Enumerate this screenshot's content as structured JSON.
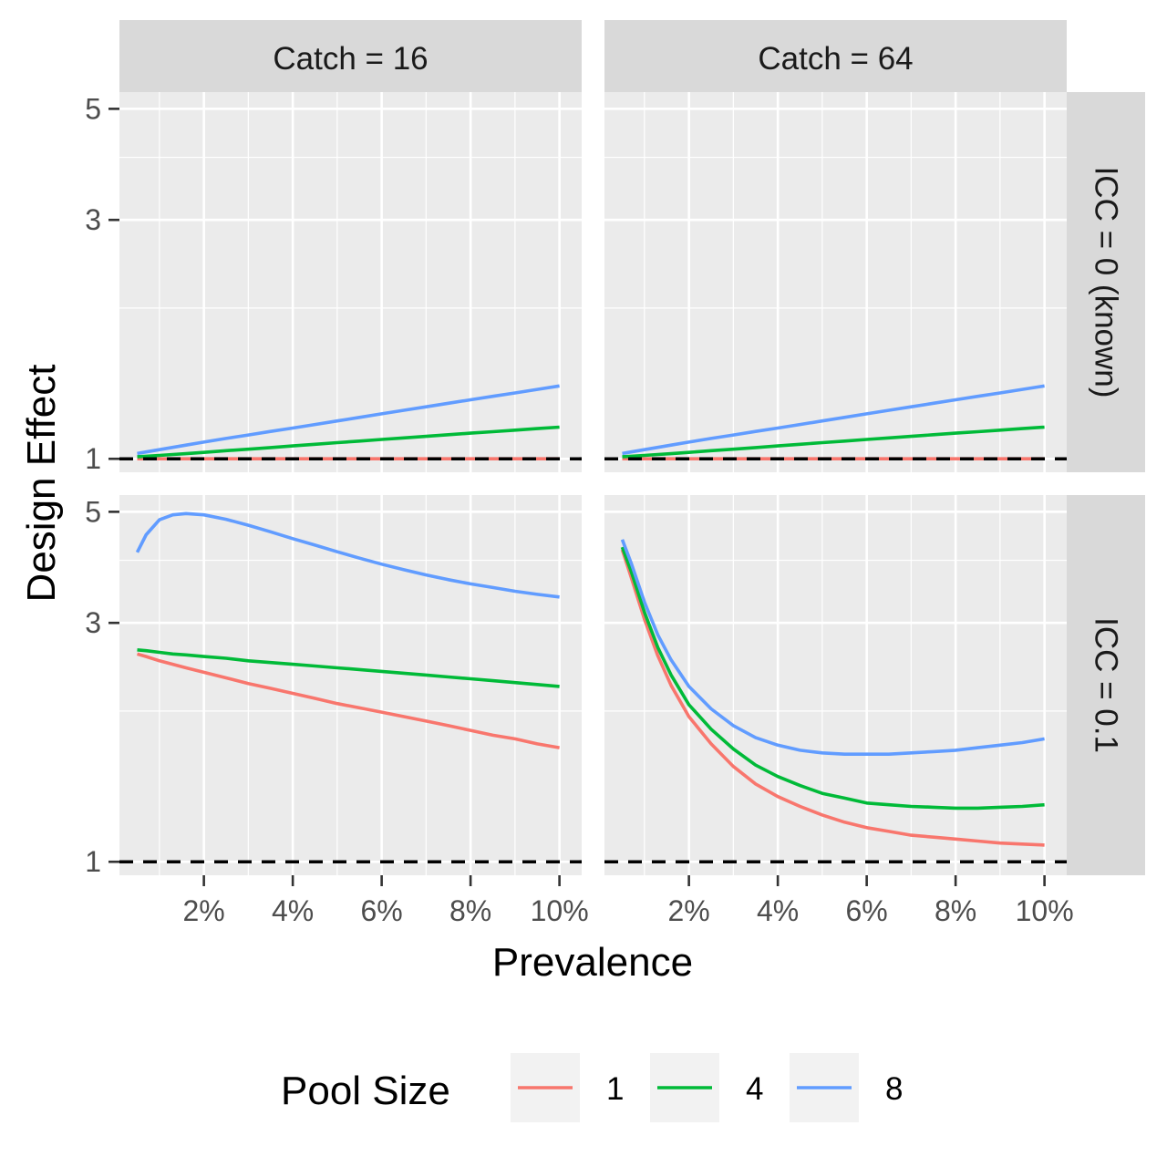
{
  "chart_data": {
    "type": "line",
    "xlabel": "Prevalence",
    "ylabel": "Design Effect",
    "x_ticks": [
      "2%",
      "4%",
      "6%",
      "8%",
      "10%"
    ],
    "y_ticks": [
      "1",
      "3",
      "5"
    ],
    "y_scale": "log",
    "xlim": [
      0.001,
      0.105
    ],
    "ylim": [
      0.94,
      5.4
    ],
    "reference_line": {
      "y": 1,
      "style": "dashed",
      "color": "#000000"
    },
    "columns": [
      "Catch = 16",
      "Catch = 64"
    ],
    "rows": [
      "ICC = 0 (known)",
      "ICC = 0.1"
    ],
    "legend": {
      "title": "Pool Size",
      "position": "bottom",
      "entries": [
        "1",
        "4",
        "8"
      ]
    },
    "colors": {
      "1": "#F8766D",
      "4": "#00BA38",
      "8": "#619CFF"
    },
    "x": [
      0.005,
      0.007,
      0.01,
      0.013,
      0.016,
      0.02,
      0.025,
      0.03,
      0.035,
      0.04,
      0.045,
      0.05,
      0.055,
      0.06,
      0.065,
      0.07,
      0.075,
      0.08,
      0.085,
      0.09,
      0.095,
      0.1
    ],
    "panels": [
      {
        "column": "Catch = 16",
        "row": "ICC = 0 (known)",
        "series": [
          {
            "name": "1",
            "values": [
              1.0,
              1.0,
              1.0,
              1.0,
              1.0,
              1.0,
              1.0,
              1.0,
              1.0,
              1.0,
              1.0,
              1.0,
              1.0,
              1.0,
              1.0,
              1.0,
              1.0,
              1.0,
              1.0,
              1.0,
              1.0,
              1.0
            ]
          },
          {
            "name": "4",
            "values": [
              1.01,
              1.012,
              1.016,
              1.02,
              1.024,
              1.03,
              1.038,
              1.045,
              1.053,
              1.061,
              1.069,
              1.077,
              1.085,
              1.093,
              1.101,
              1.109,
              1.117,
              1.125,
              1.133,
              1.141,
              1.149,
              1.157
            ]
          },
          {
            "name": "8",
            "values": [
              1.025,
              1.032,
              1.043,
              1.054,
              1.065,
              1.08,
              1.098,
              1.116,
              1.134,
              1.152,
              1.171,
              1.19,
              1.21,
              1.23,
              1.25,
              1.27,
              1.291,
              1.312,
              1.333,
              1.354,
              1.376,
              1.398
            ]
          }
        ]
      },
      {
        "column": "Catch = 64",
        "row": "ICC = 0 (known)",
        "series": [
          {
            "name": "1",
            "values": [
              1.0,
              1.0,
              1.0,
              1.0,
              1.0,
              1.0,
              1.0,
              1.0,
              1.0,
              1.0,
              1.0,
              1.0,
              1.0,
              1.0,
              1.0,
              1.0,
              1.0,
              1.0,
              1.0,
              1.0,
              1.0,
              1.0
            ]
          },
          {
            "name": "4",
            "values": [
              1.01,
              1.012,
              1.016,
              1.02,
              1.024,
              1.03,
              1.038,
              1.045,
              1.053,
              1.061,
              1.069,
              1.077,
              1.085,
              1.093,
              1.101,
              1.109,
              1.117,
              1.125,
              1.133,
              1.141,
              1.149,
              1.157
            ]
          },
          {
            "name": "8",
            "values": [
              1.025,
              1.032,
              1.043,
              1.054,
              1.065,
              1.08,
              1.098,
              1.116,
              1.134,
              1.152,
              1.171,
              1.19,
              1.21,
              1.23,
              1.25,
              1.27,
              1.291,
              1.312,
              1.333,
              1.354,
              1.376,
              1.398
            ]
          }
        ]
      },
      {
        "column": "Catch = 16",
        "row": "ICC = 0.1",
        "series": [
          {
            "name": "1",
            "values": [
              2.6,
              2.57,
              2.52,
              2.48,
              2.44,
              2.39,
              2.33,
              2.27,
              2.22,
              2.17,
              2.12,
              2.07,
              2.03,
              1.99,
              1.95,
              1.91,
              1.87,
              1.83,
              1.79,
              1.76,
              1.72,
              1.69
            ]
          },
          {
            "name": "4",
            "values": [
              2.65,
              2.64,
              2.62,
              2.6,
              2.59,
              2.57,
              2.55,
              2.52,
              2.5,
              2.48,
              2.46,
              2.44,
              2.42,
              2.4,
              2.38,
              2.36,
              2.34,
              2.32,
              2.3,
              2.28,
              2.26,
              2.24
            ]
          },
          {
            "name": "8",
            "values": [
              4.15,
              4.5,
              4.82,
              4.93,
              4.96,
              4.93,
              4.83,
              4.7,
              4.56,
              4.42,
              4.29,
              4.16,
              4.04,
              3.93,
              3.83,
              3.74,
              3.66,
              3.59,
              3.53,
              3.47,
              3.42,
              3.38
            ]
          }
        ]
      },
      {
        "column": "Catch = 64",
        "row": "ICC = 0.1",
        "series": [
          {
            "name": "1",
            "values": [
              4.2,
              3.7,
              3.05,
              2.58,
              2.25,
              1.95,
              1.72,
              1.55,
              1.43,
              1.35,
              1.29,
              1.24,
              1.2,
              1.17,
              1.15,
              1.13,
              1.12,
              1.11,
              1.1,
              1.09,
              1.085,
              1.08
            ]
          },
          {
            "name": "4",
            "values": [
              4.25,
              3.8,
              3.15,
              2.68,
              2.36,
              2.06,
              1.84,
              1.68,
              1.56,
              1.48,
              1.42,
              1.37,
              1.34,
              1.31,
              1.3,
              1.29,
              1.285,
              1.28,
              1.28,
              1.285,
              1.29,
              1.3
            ]
          },
          {
            "name": "8",
            "values": [
              4.4,
              3.95,
              3.3,
              2.84,
              2.53,
              2.24,
              2.02,
              1.87,
              1.77,
              1.71,
              1.67,
              1.65,
              1.64,
              1.64,
              1.64,
              1.65,
              1.66,
              1.67,
              1.69,
              1.71,
              1.73,
              1.76
            ]
          }
        ]
      }
    ]
  }
}
